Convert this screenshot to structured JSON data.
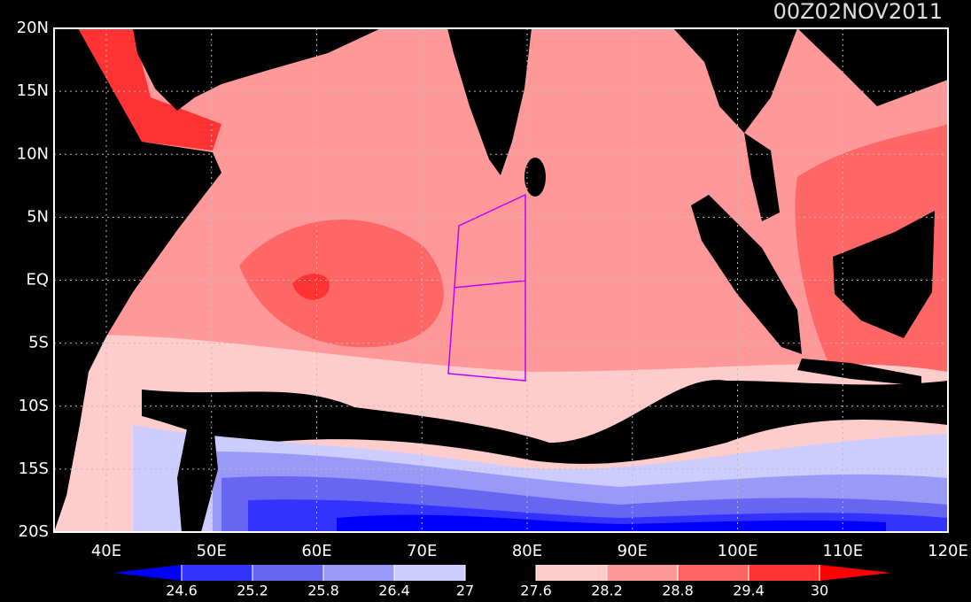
{
  "title": "00Z02NOV2011",
  "map": {
    "lat_labels": [
      "20N",
      "15N",
      "10N",
      "5N",
      "EQ",
      "5S",
      "10S",
      "15S",
      "20S"
    ],
    "lon_labels": [
      "40E",
      "50E",
      "60E",
      "70E",
      "80E",
      "90E",
      "100E",
      "110E",
      "120E"
    ]
  },
  "colorbar": {
    "levels": [
      24.6,
      25.2,
      25.8,
      26.4,
      27,
      27.6,
      28.2,
      28.8,
      29.4,
      30
    ],
    "colors": [
      "#0000ff",
      "#3333ff",
      "#6666f2",
      "#9999f7",
      "#ccccff",
      "#000000",
      "#ffcccc",
      "#ff9999",
      "#ff6666",
      "#ff3333",
      "#ff0000"
    ]
  }
}
